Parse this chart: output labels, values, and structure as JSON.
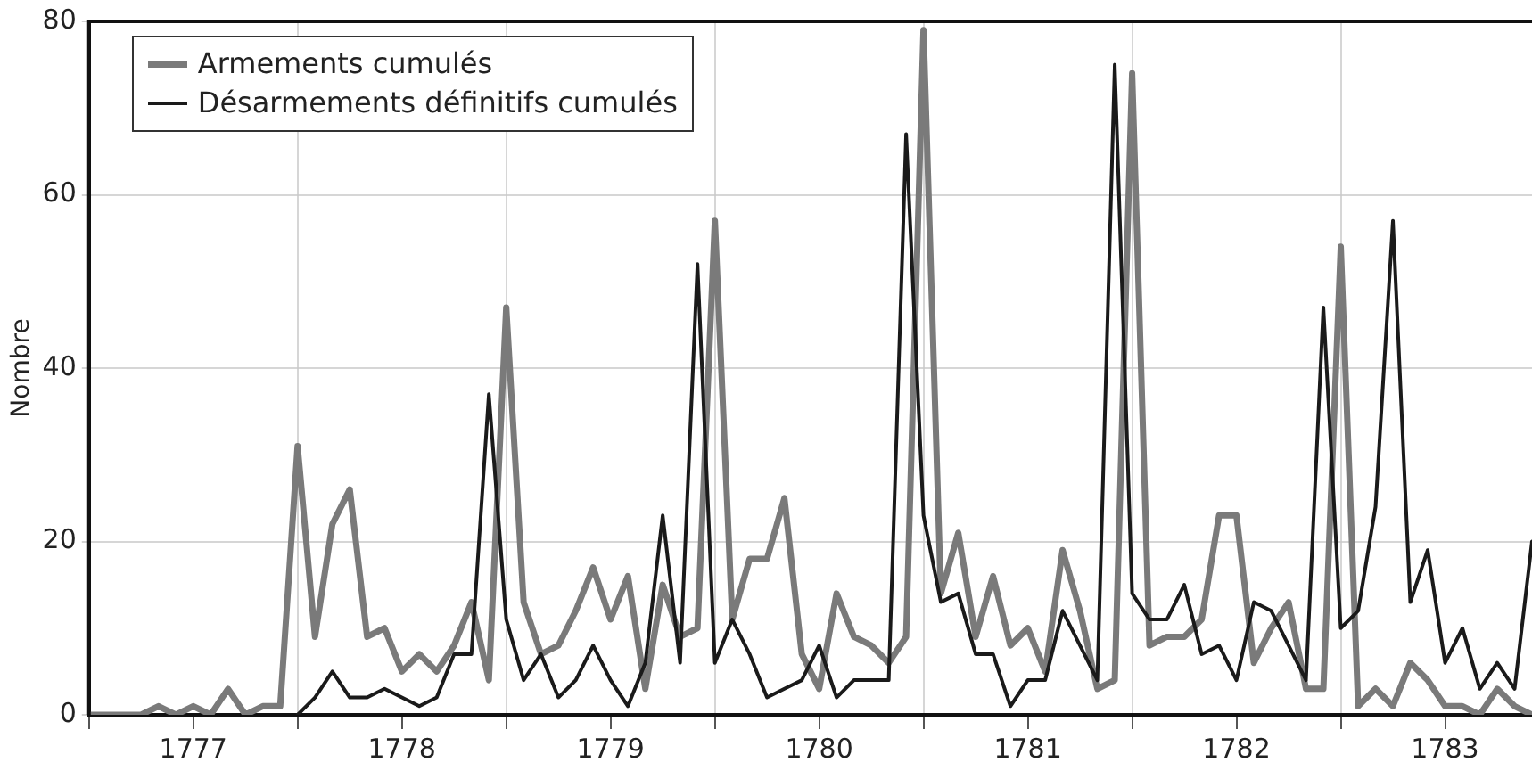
{
  "chart_data": {
    "type": "line",
    "ylabel": "Nombre",
    "x": [
      "1777-01",
      "1777-02",
      "1777-03",
      "1777-04",
      "1777-05",
      "1777-06",
      "1777-07",
      "1777-08",
      "1777-09",
      "1777-10",
      "1777-11",
      "1777-12",
      "1778-01",
      "1778-02",
      "1778-03",
      "1778-04",
      "1778-05",
      "1778-06",
      "1778-07",
      "1778-08",
      "1778-09",
      "1778-10",
      "1778-11",
      "1778-12",
      "1779-01",
      "1779-02",
      "1779-03",
      "1779-04",
      "1779-05",
      "1779-06",
      "1779-07",
      "1779-08",
      "1779-09",
      "1779-10",
      "1779-11",
      "1779-12",
      "1780-01",
      "1780-02",
      "1780-03",
      "1780-04",
      "1780-05",
      "1780-06",
      "1780-07",
      "1780-08",
      "1780-09",
      "1780-10",
      "1780-11",
      "1780-12",
      "1781-01",
      "1781-02",
      "1781-03",
      "1781-04",
      "1781-05",
      "1781-06",
      "1781-07",
      "1781-08",
      "1781-09",
      "1781-10",
      "1781-11",
      "1781-12",
      "1782-01",
      "1782-02",
      "1782-03",
      "1782-04",
      "1782-05",
      "1782-06",
      "1782-07",
      "1782-08",
      "1782-09",
      "1782-10",
      "1782-11",
      "1782-12",
      "1783-01",
      "1783-02",
      "1783-03",
      "1783-04",
      "1783-05",
      "1783-06",
      "1783-07",
      "1783-08",
      "1783-09",
      "1783-10",
      "1783-11",
      "1783-12"
    ],
    "series": [
      {
        "name": "Armements cumulés",
        "color": "#7a7a7a",
        "values": [
          0,
          0,
          0,
          0,
          1,
          0,
          1,
          0,
          3,
          0,
          1,
          1,
          31,
          9,
          22,
          26,
          9,
          10,
          5,
          7,
          5,
          8,
          13,
          4,
          47,
          13,
          7,
          8,
          12,
          17,
          11,
          16,
          3,
          15,
          9,
          10,
          57,
          11,
          18,
          18,
          25,
          7,
          3,
          14,
          9,
          8,
          6,
          9,
          79,
          14,
          21,
          9,
          16,
          8,
          10,
          5,
          19,
          12,
          3,
          4,
          74,
          8,
          9,
          9,
          11,
          23,
          23,
          6,
          10,
          13,
          3,
          3,
          54,
          1,
          3,
          1,
          6,
          4,
          1,
          1,
          0,
          3,
          1,
          0
        ]
      },
      {
        "name": "Désarmements définitifs cumulés",
        "color": "#1a1a1a",
        "values": [
          null,
          null,
          null,
          null,
          null,
          null,
          null,
          null,
          null,
          null,
          null,
          null,
          0,
          2,
          5,
          2,
          2,
          3,
          2,
          1,
          2,
          7,
          7,
          37,
          11,
          4,
          7,
          2,
          4,
          8,
          4,
          1,
          6,
          23,
          6,
          52,
          6,
          11,
          7,
          2,
          3,
          4,
          8,
          2,
          4,
          4,
          4,
          67,
          23,
          13,
          14,
          7,
          7,
          1,
          4,
          4,
          12,
          8,
          4,
          75,
          14,
          11,
          11,
          15,
          7,
          8,
          4,
          13,
          12,
          8,
          4,
          47,
          10,
          12,
          24,
          57,
          13,
          19,
          6,
          10,
          3,
          6,
          3,
          20
        ]
      }
    ],
    "xlim": [
      "1777-01",
      "1783-12"
    ],
    "xticks": [
      {
        "value": "1777-01",
        "label": null
      },
      {
        "value": "1777-07",
        "label": "1777"
      },
      {
        "value": "1778-01",
        "label": null
      },
      {
        "value": "1778-07",
        "label": "1778"
      },
      {
        "value": "1779-01",
        "label": null
      },
      {
        "value": "1779-07",
        "label": "1779"
      },
      {
        "value": "1780-01",
        "label": null
      },
      {
        "value": "1780-07",
        "label": "1780"
      },
      {
        "value": "1781-01",
        "label": null
      },
      {
        "value": "1781-07",
        "label": "1781"
      },
      {
        "value": "1782-01",
        "label": null
      },
      {
        "value": "1782-07",
        "label": "1782"
      },
      {
        "value": "1783-01",
        "label": null
      },
      {
        "value": "1783-07",
        "label": "1783"
      }
    ],
    "ylim": [
      0,
      80
    ],
    "yticks": [
      0,
      20,
      40,
      60,
      80
    ],
    "grid": true,
    "legend": "top left",
    "marker": "none",
    "line_style": "solid"
  }
}
